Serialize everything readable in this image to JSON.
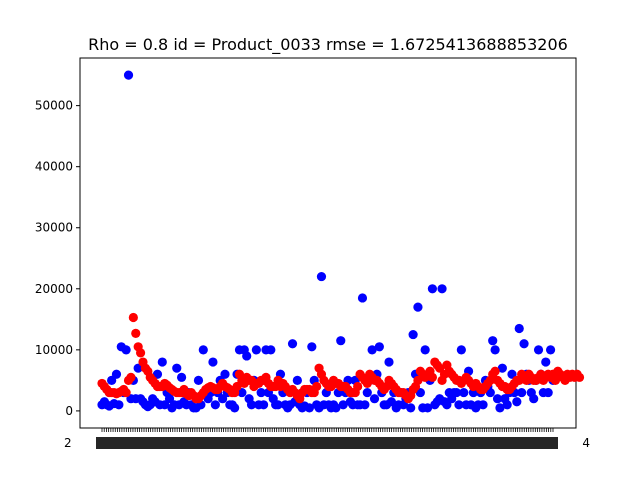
{
  "chart_data": {
    "type": "scatter",
    "title": "Rho = 0.8 id = Product_0033 rmse = 1.6725413688853206",
    "xlabel": "",
    "ylabel": "",
    "ylim": [
      -2800,
      57800
    ],
    "yticks": [
      0,
      10000,
      20000,
      30000,
      40000,
      50000
    ],
    "ytick_labels": [
      "0",
      "10000",
      "20000",
      "30000",
      "40000",
      "50000"
    ],
    "x_tick_labels_visible": [
      "2",
      "4"
    ],
    "x_tick_count": 205,
    "x_tick_labels_note": "dense overlapping date-like tick labels, unreadable",
    "grid": false,
    "series": [
      {
        "color": "#0000ff",
        "values": [
          1000,
          1500,
          1000,
          800,
          5000,
          1200,
          6000,
          1000,
          10500,
          3000,
          10000,
          55000,
          2000,
          5000,
          2000,
          7000,
          2000,
          1500,
          1000,
          700,
          1000,
          2000,
          1500,
          6000,
          1000,
          8000,
          1000,
          3000,
          2000,
          500,
          1000,
          7000,
          1000,
          5500,
          1500,
          1000,
          3000,
          1000,
          500,
          500,
          5000,
          1000,
          10000,
          3000,
          2000,
          3000,
          8000,
          1000,
          3000,
          5000,
          2000,
          6000,
          3000,
          1000,
          1000,
          500,
          6000,
          10000,
          3000,
          10000,
          9000,
          2000,
          1000,
          5000,
          10000,
          1000,
          3000,
          1000,
          10000,
          3000,
          10000,
          2000,
          1000,
          1000,
          6000,
          3000,
          1000,
          500,
          1000,
          11000,
          1500,
          5000,
          1000,
          500,
          800,
          3000,
          500,
          10500,
          5000,
          1000,
          500,
          22000,
          1000,
          3000,
          1000,
          500,
          1000,
          500,
          3000,
          11500,
          1000,
          3000,
          5000,
          1500,
          1000,
          5000,
          1000,
          1000,
          18500,
          1000,
          3000,
          5000,
          10000,
          2000,
          6000,
          10500,
          3000,
          1000,
          1000,
          8000,
          1500,
          3000,
          500,
          1000,
          3000,
          1000,
          2000,
          3000,
          500,
          12500,
          6000,
          17000,
          3000,
          500,
          10000,
          500,
          5000,
          20000,
          1000,
          1500,
          2000,
          20000,
          1500,
          1000,
          3000,
          2000,
          3000,
          3000,
          1000,
          10000,
          3000,
          1000,
          6500,
          1000,
          3000,
          500,
          1000,
          3000,
          1000,
          5000,
          4000,
          3000,
          11500,
          10000,
          2000,
          500,
          7000,
          2000,
          1000,
          3000,
          6000,
          3000,
          1500,
          13500,
          3000,
          11000,
          6000,
          5000,
          3000,
          2000,
          5000,
          10000,
          6000,
          3000,
          8000,
          3000,
          10000,
          5000
        ]
      },
      {
        "color": "#ff0000",
        "values": [
          4500,
          4000,
          3500,
          3000,
          3000,
          3000,
          2800,
          3000,
          3200,
          3500,
          3000,
          5000,
          5500,
          15300,
          12700,
          10500,
          9500,
          8000,
          7000,
          6500,
          5500,
          5000,
          4500,
          4000,
          4000,
          4000,
          4500,
          4200,
          3800,
          3500,
          3200,
          3000,
          3000,
          3000,
          3500,
          2800,
          2500,
          3000,
          2500,
          2000,
          2000,
          2500,
          3000,
          3500,
          3800,
          4000,
          3800,
          3500,
          3500,
          4000,
          4500,
          4000,
          3800,
          3500,
          3000,
          3000,
          4000,
          6000,
          5000,
          4500,
          5500,
          5000,
          5000,
          4000,
          4500,
          4500,
          5000,
          5000,
          5500,
          4500,
          4000,
          4000,
          4000,
          5000,
          4000,
          4500,
          4000,
          3500,
          3000,
          3500,
          3000,
          2500,
          2000,
          3000,
          3500,
          3500,
          3500,
          3000,
          3000,
          4000,
          7000,
          6000,
          5000,
          4500,
          4000,
          4000,
          5000,
          4500,
          4500,
          4000,
          4000,
          4000,
          3500,
          3000,
          3000,
          3000,
          4000,
          6000,
          5500,
          5000,
          4500,
          6000,
          5500,
          5000,
          5000,
          4500,
          4000,
          3500,
          4000,
          5000,
          4500,
          4000,
          3500,
          3000,
          3000,
          3000,
          2500,
          2000,
          2500,
          3500,
          4000,
          5000,
          6500,
          6000,
          5500,
          6000,
          6500,
          5500,
          8000,
          7500,
          7000,
          5000,
          6000,
          7500,
          6500,
          6000,
          5500,
          5000,
          5000,
          4500,
          5000,
          5500,
          5000,
          4500,
          4000,
          4500,
          4000,
          3500,
          3500,
          4000,
          4500,
          5000,
          6000,
          6500,
          5000,
          4500,
          4000,
          4000,
          3500,
          3500,
          4000,
          4500,
          5000,
          5000,
          6000,
          5500,
          5000,
          6000,
          5500,
          5000,
          5000,
          5500,
          6000,
          5000,
          5500,
          6000,
          5500,
          6000,
          5000,
          6500,
          6000,
          5500,
          5000,
          6000,
          5500,
          6000,
          5500,
          6000,
          5500
        ]
      }
    ]
  }
}
